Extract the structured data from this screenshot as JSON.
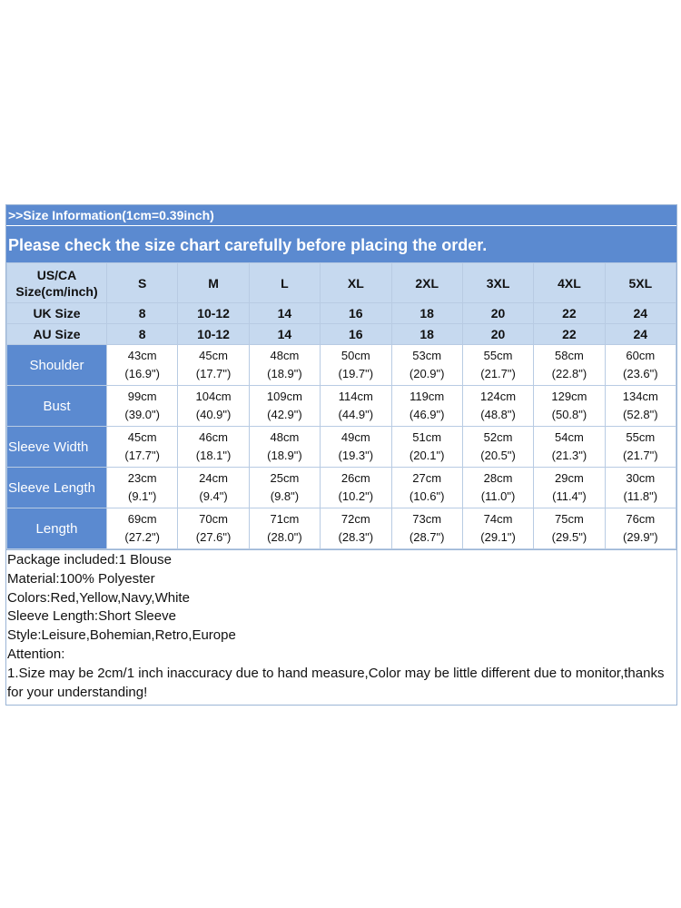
{
  "header": {
    "info": ">>Size Information(1cm=0.39inch)",
    "notice": "Please check the size chart carefully before placing the order."
  },
  "table": {
    "corner_line1": "US/CA",
    "corner_line2": "Size(cm/inch)",
    "sizes": [
      "S",
      "M",
      "L",
      "XL",
      "2XL",
      "3XL",
      "4XL",
      "5XL"
    ],
    "uk_label": "UK Size",
    "uk": [
      "8",
      "10-12",
      "14",
      "16",
      "18",
      "20",
      "22",
      "24"
    ],
    "au_label": "AU Size",
    "au": [
      "8",
      "10-12",
      "14",
      "16",
      "18",
      "20",
      "22",
      "24"
    ],
    "rows": [
      {
        "label": "Shoulder",
        "cm": [
          "43cm",
          "45cm",
          "48cm",
          "50cm",
          "53cm",
          "55cm",
          "58cm",
          "60cm"
        ],
        "inch": [
          "(16.9\")",
          "(17.7\")",
          "(18.9\")",
          "(19.7\")",
          "(20.9\")",
          "(21.7\")",
          "(22.8\")",
          "(23.6\")"
        ]
      },
      {
        "label": "Bust",
        "cm": [
          "99cm",
          "104cm",
          "109cm",
          "114cm",
          "119cm",
          "124cm",
          "129cm",
          "134cm"
        ],
        "inch": [
          "(39.0\")",
          "(40.9\")",
          "(42.9\")",
          "(44.9\")",
          "(46.9\")",
          "(48.8\")",
          "(50.8\")",
          "(52.8\")"
        ]
      },
      {
        "label": "Sleeve Width",
        "cm": [
          "45cm",
          "46cm",
          "48cm",
          "49cm",
          "51cm",
          "52cm",
          "54cm",
          "55cm"
        ],
        "inch": [
          "(17.7\")",
          "(18.1\")",
          "(18.9\")",
          "(19.3\")",
          "(20.1\")",
          "(20.5\")",
          "(21.3\")",
          "(21.7\")"
        ]
      },
      {
        "label": "Sleeve Length",
        "cm": [
          "23cm",
          "24cm",
          "25cm",
          "26cm",
          "27cm",
          "28cm",
          "29cm",
          "30cm"
        ],
        "inch": [
          "(9.1\")",
          "(9.4\")",
          "(9.8\")",
          "(10.2\")",
          "(10.6\")",
          "(11.0\")",
          "(11.4\")",
          "(11.8\")"
        ]
      },
      {
        "label": "Length",
        "cm": [
          "69cm",
          "70cm",
          "71cm",
          "72cm",
          "73cm",
          "74cm",
          "75cm",
          "76cm"
        ],
        "inch": [
          "(27.2\")",
          "(27.6\")",
          "(28.0\")",
          "(28.3\")",
          "(28.7\")",
          "(29.1\")",
          "(29.5\")",
          "(29.9\")"
        ]
      }
    ]
  },
  "notes": [
    "Package included:1 Blouse",
    "Material:100% Polyester",
    "Colors:Red,Yellow,Navy,White",
    "Sleeve Length:Short Sleeve",
    "Style:Leisure,Bohemian,Retro,Europe",
    "Attention:",
    "1.Size may be 2cm/1 inch inaccuracy due to hand measure,Color may be little different due to monitor,thanks for your understanding!"
  ],
  "colors": {
    "header_blue": "#5b8ad0",
    "label_light_blue": "#c6d9ef",
    "border": "#b8cbe3"
  }
}
